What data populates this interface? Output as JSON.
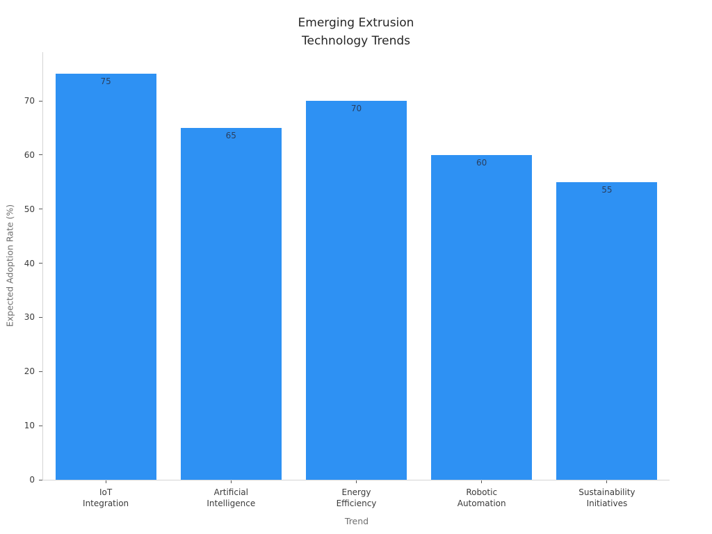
{
  "chart_data": {
    "type": "bar",
    "title": "Emerging Extrusion\nTechnology Trends",
    "xlabel": "Trend",
    "ylabel": "Expected Adoption Rate (%)",
    "categories": [
      "IoT\nIntegration",
      "Artificial\nIntelligence",
      "Energy\nEfficiency",
      "Robotic\nAutomation",
      "Sustainability\nInitiatives"
    ],
    "values": [
      75,
      65,
      70,
      60,
      55
    ],
    "bar_value_labels": [
      "75",
      "65",
      "70",
      "60",
      "55"
    ],
    "yticks": [
      0,
      10,
      20,
      30,
      40,
      50,
      60,
      70
    ],
    "ylim": [
      0,
      79
    ],
    "grid": false,
    "legend": "none",
    "colors": {
      "bar_fill": "#2e91f3",
      "bar_value_label": "#2a3f5f",
      "title_text": "#262626",
      "tick_label": "#3a3a3a",
      "axis_title": "#6e6e6e",
      "spine": "#d4d4d4",
      "tick_mark": "#555555",
      "background": "#ffffff"
    }
  }
}
